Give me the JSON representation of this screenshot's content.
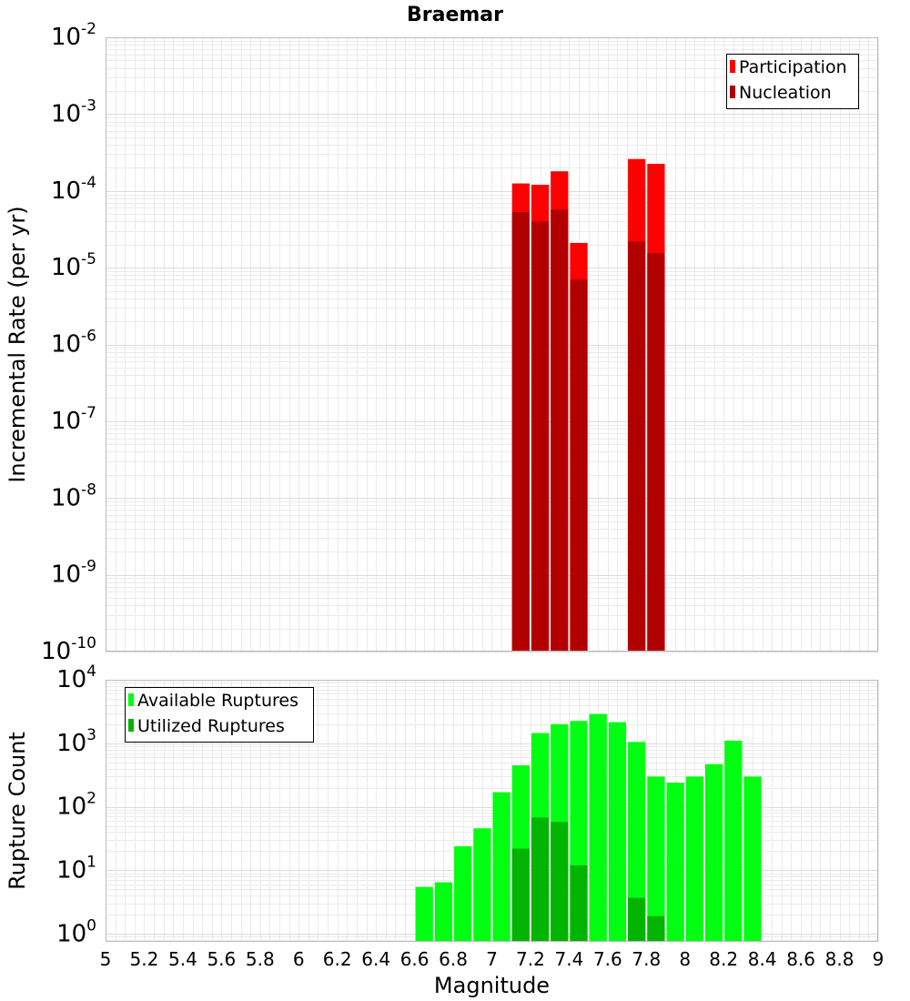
{
  "chart_data": [
    {
      "type": "bar",
      "title": "Braemar",
      "xlabel": "",
      "ylabel": "Incremental Rate (per yr)",
      "y_scale": "log",
      "ylim": [
        1e-10,
        0.01
      ],
      "xlim": [
        5,
        9
      ],
      "bar_width": 0.1,
      "grid": true,
      "legend_position": "top-right",
      "y_tick_exponents": [
        -10,
        -9,
        -8,
        -7,
        -6,
        -5,
        -4,
        -3,
        -2
      ],
      "series": [
        {
          "name": "Participation",
          "color": "#ff0000",
          "x": [
            7.15,
            7.25,
            7.35,
            7.45,
            7.75,
            7.85
          ],
          "values": [
            0.000125,
            0.00012,
            0.00018,
            2.1e-05,
            0.00026,
            0.000225
          ]
        },
        {
          "name": "Nucleation",
          "color": "#b20000",
          "x": [
            7.15,
            7.25,
            7.35,
            7.45,
            7.75,
            7.85
          ],
          "values": [
            5.3e-05,
            4e-05,
            5.7e-05,
            7e-06,
            2.2e-05,
            1.55e-05
          ]
        }
      ]
    },
    {
      "type": "bar",
      "title": "",
      "xlabel": "Magnitude",
      "ylabel": "Rupture Count",
      "y_scale": "log",
      "ylim": [
        0.75,
        10000
      ],
      "xlim": [
        5,
        9
      ],
      "bar_width": 0.1,
      "grid": true,
      "legend_position": "top-left",
      "y_tick_exponents": [
        0,
        1,
        2,
        3,
        4
      ],
      "x_ticks": [
        "5",
        "5.2",
        "5.4",
        "5.6",
        "5.8",
        "6",
        "6.2",
        "6.4",
        "6.6",
        "6.8",
        "7",
        "7.2",
        "7.4",
        "7.6",
        "7.8",
        "8",
        "8.2",
        "8.4",
        "8.6",
        "8.8",
        "9"
      ],
      "series": [
        {
          "name": "Available Ruptures",
          "color": "#00ff10",
          "x": [
            6.65,
            6.75,
            6.85,
            6.95,
            7.05,
            7.15,
            7.25,
            7.35,
            7.45,
            7.55,
            7.65,
            7.75,
            7.85,
            7.95,
            8.05,
            8.15,
            8.25,
            8.35
          ],
          "values": [
            5.5,
            6.5,
            24,
            46,
            170,
            450,
            1450,
            2000,
            2250,
            2900,
            2150,
            1050,
            300,
            240,
            300,
            470,
            1100,
            300
          ]
        },
        {
          "name": "Utilized Ruptures",
          "color": "#00b400",
          "x": [
            7.15,
            7.25,
            7.35,
            7.45,
            7.75,
            7.85
          ],
          "values": [
            22,
            68,
            58,
            12,
            3.7,
            1.9
          ]
        }
      ]
    }
  ]
}
